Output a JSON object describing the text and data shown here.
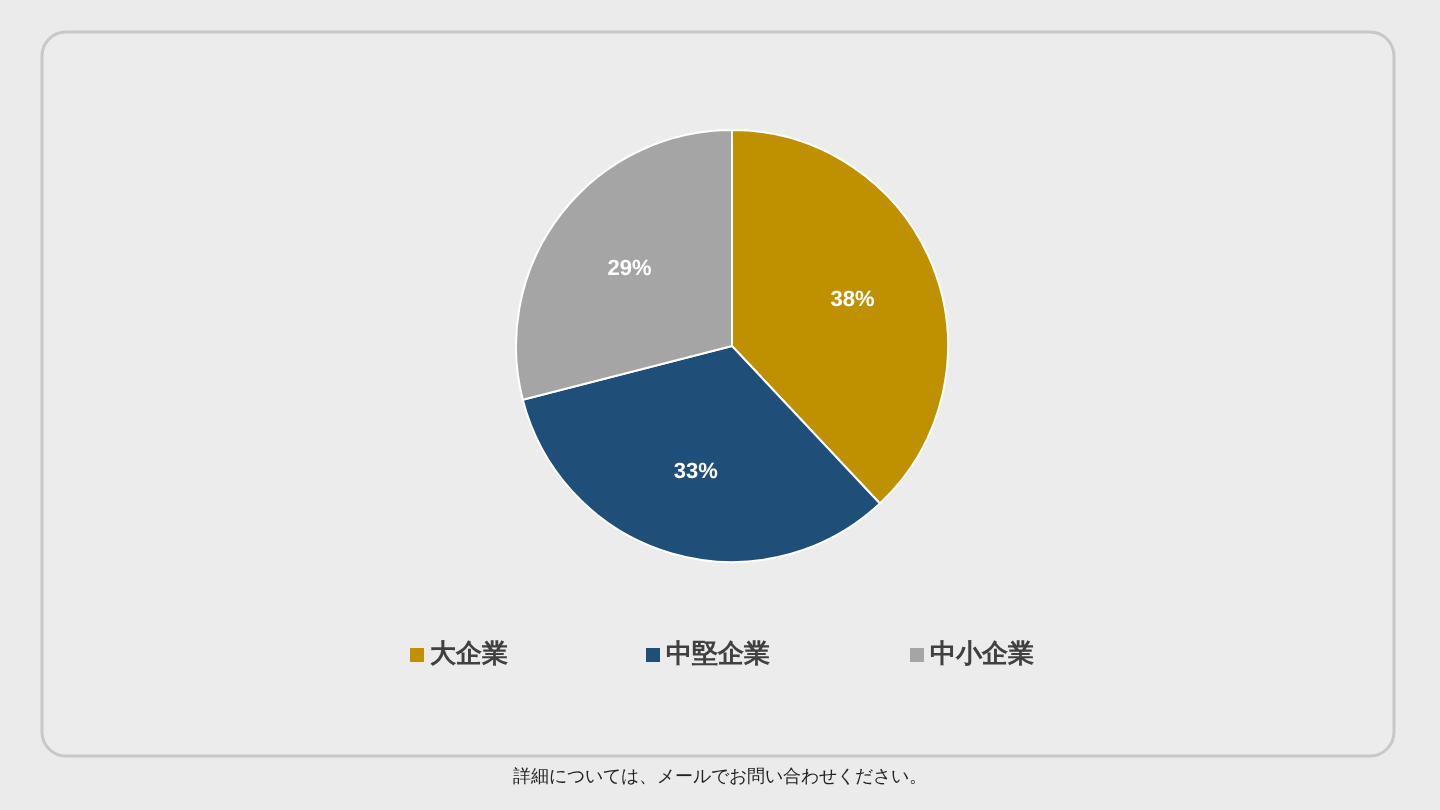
{
  "chart_data": {
    "type": "pie",
    "categories": [
      "大企業",
      "中堅企業",
      "中小企業"
    ],
    "values": [
      38,
      33,
      29
    ],
    "colors": [
      "#bf9000",
      "#1f4e79",
      "#a5a5a5"
    ],
    "value_labels": [
      "38%",
      "33%",
      "29%"
    ],
    "legend": "bottom",
    "annotations": [
      "詳細については、メールでお問い合わせください。"
    ]
  }
}
